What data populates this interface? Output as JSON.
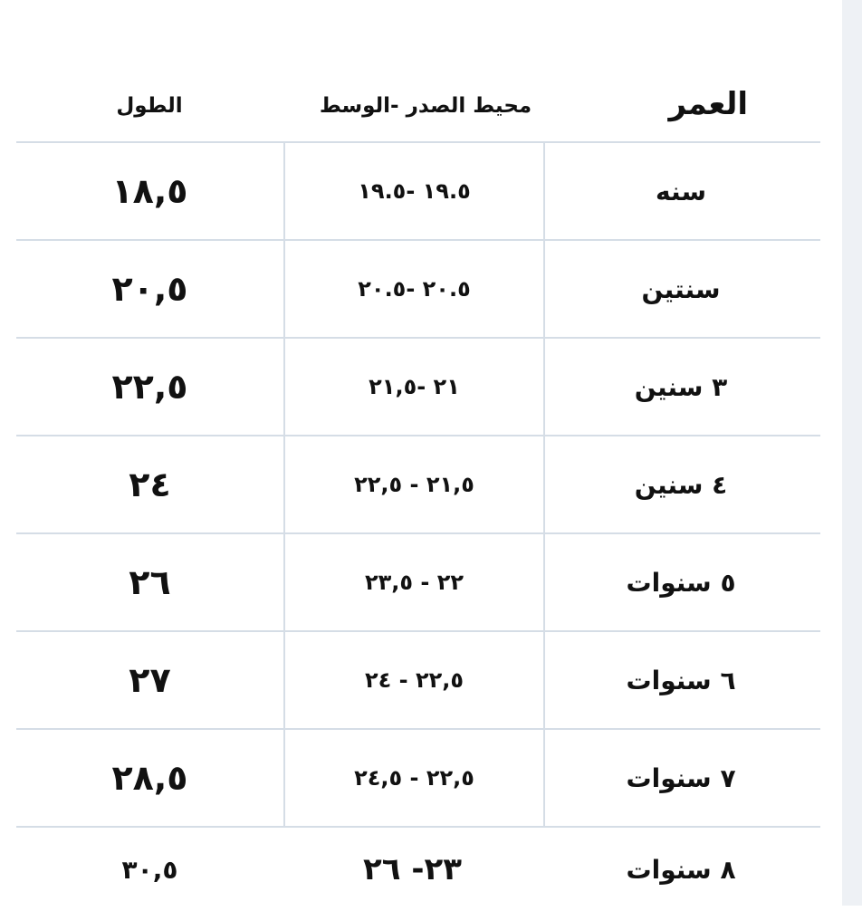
{
  "headers": {
    "age": "العمر",
    "chest_waist": "محيط الصدر -الوسط",
    "length": "الطول"
  },
  "rows": [
    {
      "age": "سنه",
      "chest_waist": "١٩.٥ -١٩.٥",
      "length": "١٨,٥"
    },
    {
      "age": "سنتين",
      "chest_waist": "٢٠.٥ -٢٠.٥",
      "length": "٢٠,٥"
    },
    {
      "age": "٣ سنين",
      "chest_waist": "٢١ -٢١,٥",
      "length": "٢٢,٥"
    },
    {
      "age": "٤ سنين",
      "chest_waist": "٢١,٥ - ٢٢,٥",
      "length": "٢٤"
    },
    {
      "age": "٥ سنوات",
      "chest_waist": "٢٢ - ٢٣,٥",
      "length": "٢٦"
    },
    {
      "age": "٦ سنوات",
      "chest_waist": "٢٢,٥ - ٢٤",
      "length": "٢٧"
    },
    {
      "age": "٧ سنوات",
      "chest_waist": "٢٢,٥ - ٢٤,٥",
      "length": "٢٨,٥"
    },
    {
      "age": "٨ سنوات",
      "chest_waist": "٢٣- ٢٦",
      "length": "٣٠,٥"
    }
  ]
}
